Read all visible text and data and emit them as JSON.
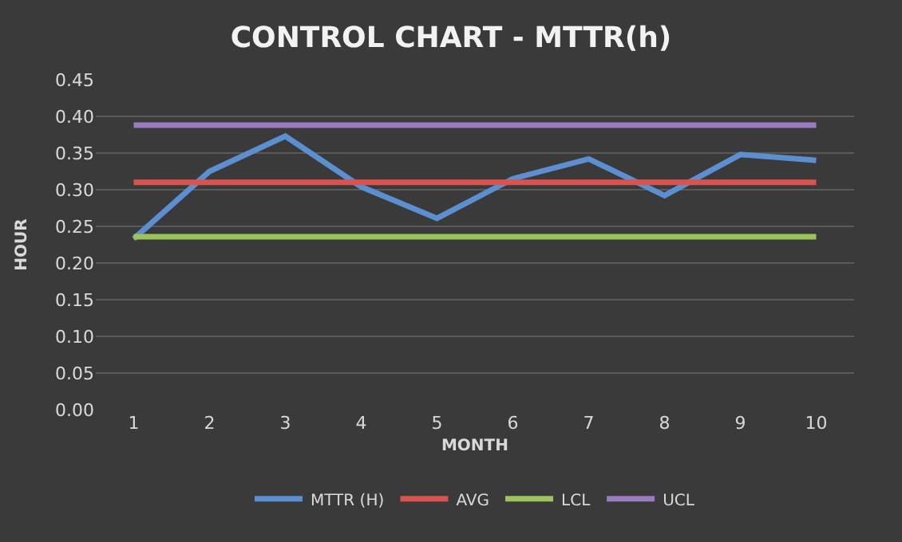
{
  "chart_data": {
    "type": "line",
    "title": "CONTROL CHART - MTTR(h)",
    "xlabel": "MONTH",
    "ylabel": "HOUR",
    "categories": [
      "1",
      "2",
      "3",
      "4",
      "5",
      "6",
      "7",
      "8",
      "9",
      "10"
    ],
    "series": [
      {
        "name": "MTTR (H)",
        "color": "#5b8fd0",
        "values": [
          0.233,
          0.325,
          0.373,
          0.304,
          0.261,
          0.315,
          0.342,
          0.292,
          0.348,
          0.34
        ]
      },
      {
        "name": "AVG",
        "color": "#d9534f",
        "values": [
          0.31,
          0.31,
          0.31,
          0.31,
          0.31,
          0.31,
          0.31,
          0.31,
          0.31,
          0.31
        ]
      },
      {
        "name": "LCL",
        "color": "#9bc45a",
        "values": [
          0.236,
          0.236,
          0.236,
          0.236,
          0.236,
          0.236,
          0.236,
          0.236,
          0.236,
          0.236
        ]
      },
      {
        "name": "UCL",
        "color": "#9b7bc0",
        "values": [
          0.388,
          0.388,
          0.388,
          0.388,
          0.388,
          0.388,
          0.388,
          0.388,
          0.388,
          0.388
        ]
      }
    ],
    "ylim": [
      0,
      0.45
    ],
    "yticks": [
      {
        "value": 0,
        "label": "0.00"
      },
      {
        "value": 0.05,
        "label": "0.05"
      },
      {
        "value": 0.1,
        "label": "0.10"
      },
      {
        "value": 0.15,
        "label": "0.15"
      },
      {
        "value": 0.2,
        "label": "0.20"
      },
      {
        "value": 0.25,
        "label": "0.25"
      },
      {
        "value": 0.3,
        "label": "0.30"
      },
      {
        "value": 0.35,
        "label": "0.35"
      },
      {
        "value": 0.4,
        "label": "0.40"
      },
      {
        "value": 0.45,
        "label": "0.45"
      }
    ],
    "grid": "y",
    "legend": "bottom",
    "marker": "none",
    "line_style": "solid"
  }
}
